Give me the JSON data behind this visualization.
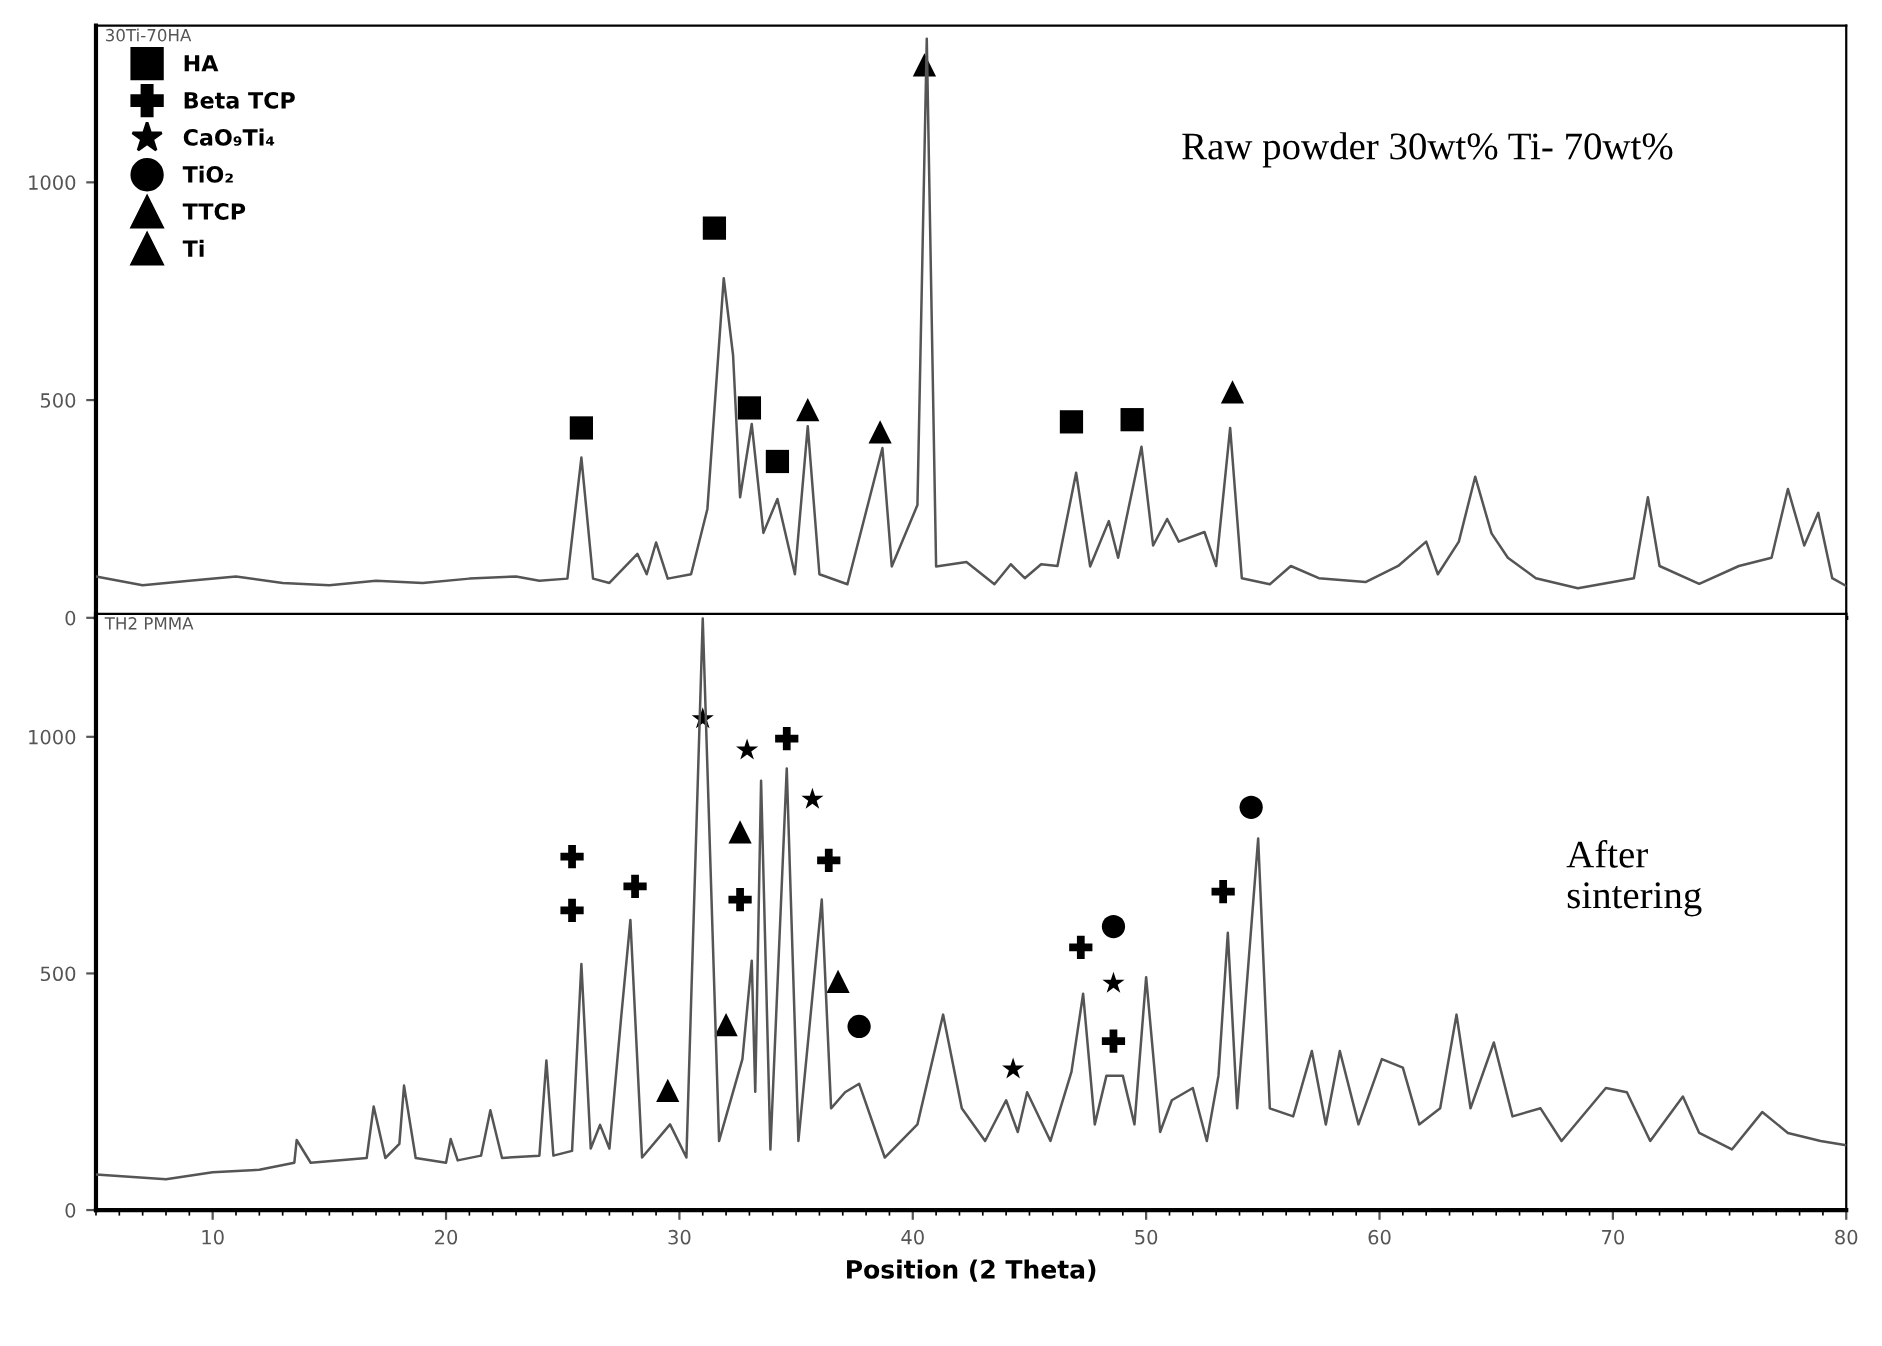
{
  "chart_data": [
    {
      "type": "line",
      "title": "30Ti-70HA",
      "xlim": [
        5,
        80
      ],
      "ylim": [
        0,
        1360
      ],
      "yticks": [
        0,
        500,
        1000
      ],
      "xticks": [
        10,
        20,
        30,
        40,
        50,
        60,
        70,
        80
      ],
      "tick_labels": "y",
      "legend": "top left",
      "grid": false,
      "annotations": [
        "Raw powder 30wt% Ti- 70wt%"
      ],
      "series": [
        {
          "color": "#555555",
          "x": [
            5,
            7,
            9,
            11,
            13,
            15,
            17,
            19,
            21,
            23,
            24,
            25.2,
            25.8,
            26.3,
            27,
            28.2,
            28.6,
            29.0,
            29.5,
            30.5,
            31.2,
            31.9,
            32.3,
            32.6,
            33.1,
            33.6,
            34.2,
            34.95,
            35.5,
            36.0,
            37.2,
            38.7,
            39.1,
            40.2,
            40.6,
            41.0,
            42.3,
            43.5,
            44.2,
            44.8,
            45.5,
            46.2,
            47.0,
            47.6,
            48.4,
            48.8,
            49.8,
            50.3,
            50.9,
            51.4,
            52.5,
            53.0,
            53.6,
            54.1,
            55.3,
            56.2,
            57.4,
            59.4,
            60.8,
            62.0,
            62.5,
            63.4,
            64.1,
            64.8,
            65.5,
            66.7,
            68.5,
            70.9,
            71.5,
            72.0,
            73.7,
            75.4,
            76.8,
            77.5,
            78.2,
            78.8,
            79.4,
            80
          ],
          "values": [
            95,
            75,
            85,
            95,
            80,
            75,
            85,
            80,
            90,
            95,
            85,
            90,
            368,
            90,
            80,
            147,
            100,
            173,
            90,
            100,
            250,
            780,
            603,
            277,
            445,
            195,
            273,
            100,
            440,
            100,
            77,
            390,
            118,
            259,
            1330,
            118,
            128,
            77,
            123,
            91,
            123,
            119,
            333,
            118,
            222,
            138,
            393,
            166,
            227,
            175,
            197,
            119,
            436,
            91,
            77,
            119,
            91,
            82,
            119,
            175,
            100,
            175,
            324,
            194,
            138,
            91,
            68,
            91,
            277,
            119,
            78,
            119,
            138,
            296,
            166,
            241,
            91,
            73
          ]
        },
        {
          "type": "scatter",
          "name": "HA",
          "marker": "square",
          "color": "#000000",
          "x": [
            25.8,
            31.5,
            33.0,
            34.2,
            46.8,
            49.4
          ],
          "values": [
            436,
            895,
            482,
            359,
            450,
            455
          ]
        },
        {
          "type": "scatter",
          "name": "Beta TCP",
          "marker": "cross",
          "color": "#000000"
        },
        {
          "type": "scatter",
          "name": "CaO₉Ti₄",
          "marker": "star",
          "color": "#000000"
        },
        {
          "type": "scatter",
          "name": "TiO₂",
          "marker": "circle",
          "color": "#000000"
        },
        {
          "type": "scatter",
          "name": "TTCP",
          "marker": "triangle",
          "color": "#000000"
        },
        {
          "type": "scatter",
          "name": "Ti",
          "marker": "triangle",
          "color": "#000000",
          "x": [
            35.5,
            38.6,
            40.5,
            53.7
          ],
          "values": [
            478,
            427,
            1270,
            519
          ]
        }
      ]
    },
    {
      "type": "line",
      "title": "TH2 PMMA",
      "xlim": [
        5,
        80
      ],
      "ylim": [
        0,
        1260
      ],
      "yticks": [
        0,
        500,
        1000
      ],
      "xticks": [
        10,
        20,
        30,
        40,
        50,
        60,
        70,
        80
      ],
      "xlabel": "Position (2 Theta)",
      "legend": false,
      "grid": false,
      "annotations": [
        "After\nsintering"
      ],
      "series": [
        {
          "color": "#555555",
          "x": [
            5,
            8,
            10,
            12,
            13.5,
            13.6,
            14.2,
            16.6,
            16.9,
            17.4,
            18.0,
            18.2,
            18.7,
            20.0,
            20.2,
            20.5,
            21.5,
            21.9,
            22.4,
            24.0,
            24.3,
            24.6,
            25.4,
            25.8,
            26.2,
            26.6,
            27.0,
            27.5,
            27.9,
            28.4,
            29.6,
            30.3,
            31.0,
            31.7,
            32.7,
            33.1,
            33.25,
            33.5,
            33.9,
            34.6,
            35.1,
            36.1,
            36.5,
            37.1,
            37.7,
            38.8,
            40.2,
            41.3,
            42.1,
            43.1,
            44.0,
            44.5,
            44.9,
            45.9,
            46.8,
            47.3,
            47.8,
            48.3,
            49.0,
            49.5,
            50.0,
            50.6,
            51.1,
            52.0,
            52.6,
            53.1,
            53.5,
            53.9,
            54.8,
            55.3,
            56.3,
            57.1,
            57.7,
            58.3,
            59.1,
            60.1,
            61.0,
            61.7,
            62.6,
            63.3,
            63.9,
            64.9,
            65.7,
            66.9,
            67.8,
            69.7,
            70.6,
            71.6,
            73.0,
            73.7,
            75.1,
            76.4,
            77.5,
            78.9,
            80
          ],
          "values": [
            75,
            65,
            80,
            85,
            100,
            148,
            100,
            110,
            219,
            110,
            140,
            263,
            110,
            100,
            150,
            105,
            115,
            211,
            110,
            115,
            316,
            115,
            125,
            520,
            130,
            180,
            130,
            405,
            613,
            111,
            181,
            111,
            1250,
            146,
            319,
            527,
            250,
            907,
            128,
            933,
            146,
            656,
            215,
            249,
            267,
            111,
            181,
            413,
            215,
            146,
            232,
            165,
            249,
            146,
            292,
            457,
            181,
            284,
            284,
            181,
            492,
            165,
            232,
            258,
            146,
            284,
            586,
            215,
            785,
            215,
            198,
            336,
            181,
            336,
            181,
            319,
            301,
            181,
            215,
            413,
            215,
            354,
            198,
            215,
            146,
            258,
            249,
            146,
            240,
            163,
            128,
            207,
            163,
            146,
            137
          ]
        },
        {
          "type": "scatter",
          "marker": "cross",
          "color": "#000000",
          "x": [
            25.4,
            25.4,
            28.1,
            32.6,
            34.6,
            36.4,
            47.2,
            48.6,
            53.3
          ],
          "values": [
            747,
            633,
            684,
            656,
            996,
            739,
            555,
            357,
            673
          ]
        },
        {
          "type": "scatter",
          "marker": "star",
          "color": "#000000",
          "x": [
            31.0,
            32.9,
            35.7,
            44.3,
            48.6
          ],
          "values": [
            1038,
            972,
            868,
            298,
            479
          ]
        },
        {
          "type": "scatter",
          "marker": "circle",
          "color": "#000000",
          "x": [
            37.7,
            48.6,
            54.5
          ],
          "values": [
            388,
            599,
            851
          ]
        },
        {
          "type": "scatter",
          "marker": "triangle",
          "color": "#000000",
          "x": [
            29.5,
            32.0,
            32.6,
            36.8
          ],
          "values": [
            253,
            392,
            799,
            483
          ]
        }
      ]
    }
  ]
}
